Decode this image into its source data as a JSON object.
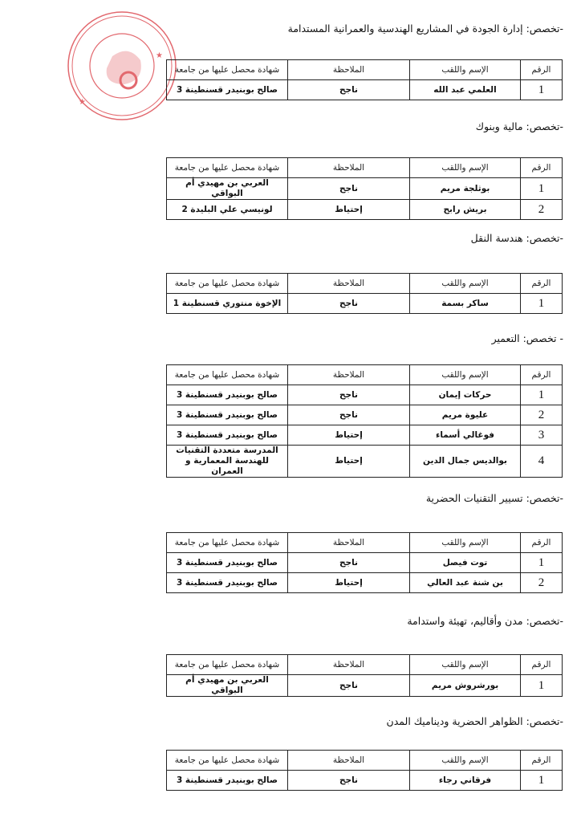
{
  "stamp": {
    "outer_text": "وزارة التعليم العالي و البحث العلمي",
    "inner_text": "مركز البحث في تهيئة الإقليم",
    "color": "#d9363e"
  },
  "columns": [
    "الرقم",
    "الإسم واللقب",
    "الملاحظة",
    "شهادة محصل عليها من جامعة"
  ],
  "sections": [
    {
      "heading": "-تخصص: إدارة الجودة في المشاريع الهندسية والعمرانية المستدامة",
      "rows": [
        [
          "1",
          "العلمي عبد الله",
          "ناجح",
          "صالح بوبنيدر قسنطينة 3"
        ]
      ]
    },
    {
      "heading": "-تخصص: مالية وبنوك",
      "rows": [
        [
          "1",
          "بوثلجة مريم",
          "ناجح",
          "العربي بن مهيدي أم البواقي"
        ],
        [
          "2",
          "بريش رابح",
          "إحتياط",
          "لونيسي علي البليدة 2"
        ]
      ]
    },
    {
      "heading": "-تخصص: هندسة النقل",
      "rows": [
        [
          "1",
          "ساكر بسمة",
          "ناجح",
          "الإخوة منتوري قسنطينة 1"
        ]
      ]
    },
    {
      "heading": "- تخصص: التعمير",
      "rows": [
        [
          "1",
          "حركات إيمان",
          "ناجح",
          "صالح بوبنيدر قسنطينة 3"
        ],
        [
          "2",
          "عليوة مريم",
          "ناجح",
          "صالح بوبنيدر قسنطينة 3"
        ],
        [
          "3",
          "فوغالي أسماء",
          "إحتياط",
          "صالح بوبنيدر قسنطينة 3"
        ],
        [
          "4",
          "بوالديس جمال الدين",
          "إحتياط",
          "المدرسة متعددة التقنيات للهندسة المعمارية و العمران"
        ]
      ]
    },
    {
      "heading": "-تخصص: تسيير التقنيات الحضرية",
      "rows": [
        [
          "1",
          "توت فيصل",
          "ناجح",
          "صالح بوبنيدر قسنطينة 3"
        ],
        [
          "2",
          "بن شنة عبد العالي",
          "إحتياط",
          "صالح بوبنيدر قسنطينة 3"
        ]
      ]
    },
    {
      "heading": "-تخصص: مدن وأقاليم، تهيئة واستدامة",
      "rows": [
        [
          "1",
          "بورشروش مريم",
          "ناجح",
          "العربي بن مهيدي أم البواقي"
        ]
      ]
    },
    {
      "heading": "-تخصص: الظواهر الحضرية وديناميك المدن",
      "rows": [
        [
          "1",
          "فرقاني رجاء",
          "ناجح",
          "صالح بوبنيدر قسنطينة 3"
        ]
      ]
    }
  ]
}
